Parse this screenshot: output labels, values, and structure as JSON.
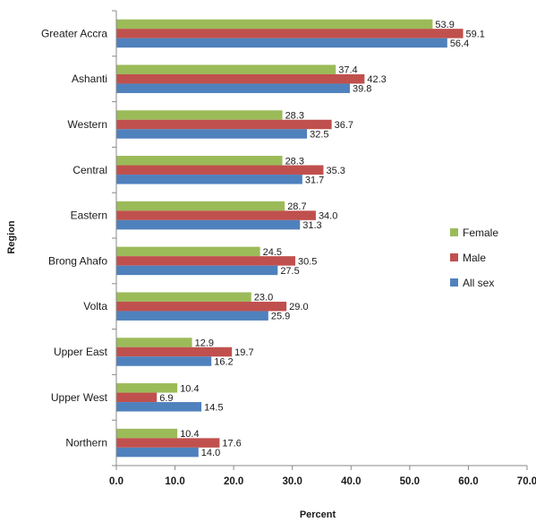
{
  "chart_data": {
    "type": "bar",
    "orientation": "horizontal",
    "title": "",
    "xlabel": "Percent",
    "ylabel": "Region",
    "categories": [
      "Greater Accra",
      "Ashanti",
      "Western",
      "Central",
      "Eastern",
      "Brong Ahafo",
      "Volta",
      "Upper East",
      "Upper West",
      "Northern"
    ],
    "series": [
      {
        "name": "Female",
        "color": "#9bbb59",
        "values": [
          53.9,
          37.4,
          28.3,
          28.3,
          28.7,
          24.5,
          23.0,
          12.9,
          10.4,
          10.4
        ]
      },
      {
        "name": "Male",
        "color": "#c0504d",
        "values": [
          59.1,
          42.3,
          36.7,
          35.3,
          34.0,
          30.5,
          29.0,
          19.7,
          6.9,
          17.6
        ]
      },
      {
        "name": "All sex",
        "color": "#4f81bd",
        "values": [
          56.4,
          39.8,
          32.5,
          31.7,
          31.3,
          27.5,
          25.9,
          16.2,
          14.5,
          14.0
        ]
      }
    ],
    "xlim": [
      0,
      70
    ],
    "xticks": [
      "0.0",
      "10.0",
      "20.0",
      "30.0",
      "40.0",
      "50.0",
      "60.0",
      "70.0"
    ],
    "legend_position": "right",
    "grid": false
  }
}
